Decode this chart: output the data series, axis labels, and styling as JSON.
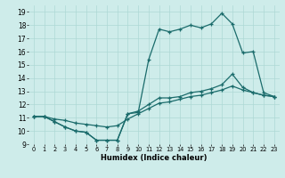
{
  "xlabel": "Humidex (Indice chaleur)",
  "background_color": "#ceecea",
  "grid_color": "#aed8d5",
  "line_color": "#1a6b6b",
  "xlim": [
    -0.5,
    23.5
  ],
  "ylim": [
    9,
    19.5
  ],
  "xticks": [
    0,
    1,
    2,
    3,
    4,
    5,
    6,
    7,
    8,
    9,
    10,
    11,
    12,
    13,
    14,
    15,
    16,
    17,
    18,
    19,
    20,
    21,
    22,
    23
  ],
  "yticks": [
    9,
    10,
    11,
    12,
    13,
    14,
    15,
    16,
    17,
    18,
    19
  ],
  "line1_x": [
    0,
    1,
    2,
    3,
    4,
    5,
    6,
    7,
    8,
    9,
    10,
    11,
    12,
    13,
    14,
    15,
    16,
    17,
    18,
    19,
    20,
    21,
    22,
    23
  ],
  "line1_y": [
    11.1,
    11.1,
    10.7,
    10.3,
    10.0,
    9.9,
    9.3,
    9.3,
    9.3,
    11.3,
    11.4,
    15.4,
    17.7,
    17.5,
    17.7,
    18.0,
    17.8,
    18.1,
    18.9,
    18.1,
    15.9,
    16.0,
    12.9,
    12.6
  ],
  "line2_x": [
    0,
    1,
    2,
    3,
    4,
    5,
    6,
    7,
    8,
    9,
    10,
    11,
    12,
    13,
    14,
    15,
    16,
    17,
    18,
    19,
    20,
    21,
    22,
    23
  ],
  "line2_y": [
    11.1,
    11.1,
    10.7,
    10.3,
    10.0,
    9.9,
    9.3,
    9.3,
    9.3,
    11.3,
    11.5,
    12.0,
    12.5,
    12.5,
    12.6,
    12.9,
    13.0,
    13.2,
    13.5,
    14.3,
    13.3,
    12.9,
    12.7,
    12.6
  ],
  "line3_x": [
    0,
    1,
    2,
    3,
    4,
    5,
    6,
    7,
    8,
    9,
    10,
    11,
    12,
    13,
    14,
    15,
    16,
    17,
    18,
    19,
    20,
    21,
    22,
    23
  ],
  "line3_y": [
    11.1,
    11.1,
    10.9,
    10.8,
    10.6,
    10.5,
    10.4,
    10.3,
    10.4,
    10.9,
    11.3,
    11.7,
    12.1,
    12.2,
    12.4,
    12.6,
    12.7,
    12.9,
    13.1,
    13.4,
    13.1,
    12.9,
    12.7,
    12.6
  ],
  "xlabel_fontsize": 6.0,
  "tick_fontsize": 4.8,
  "ytick_fontsize": 5.5,
  "linewidth": 0.9,
  "markersize": 3.0
}
